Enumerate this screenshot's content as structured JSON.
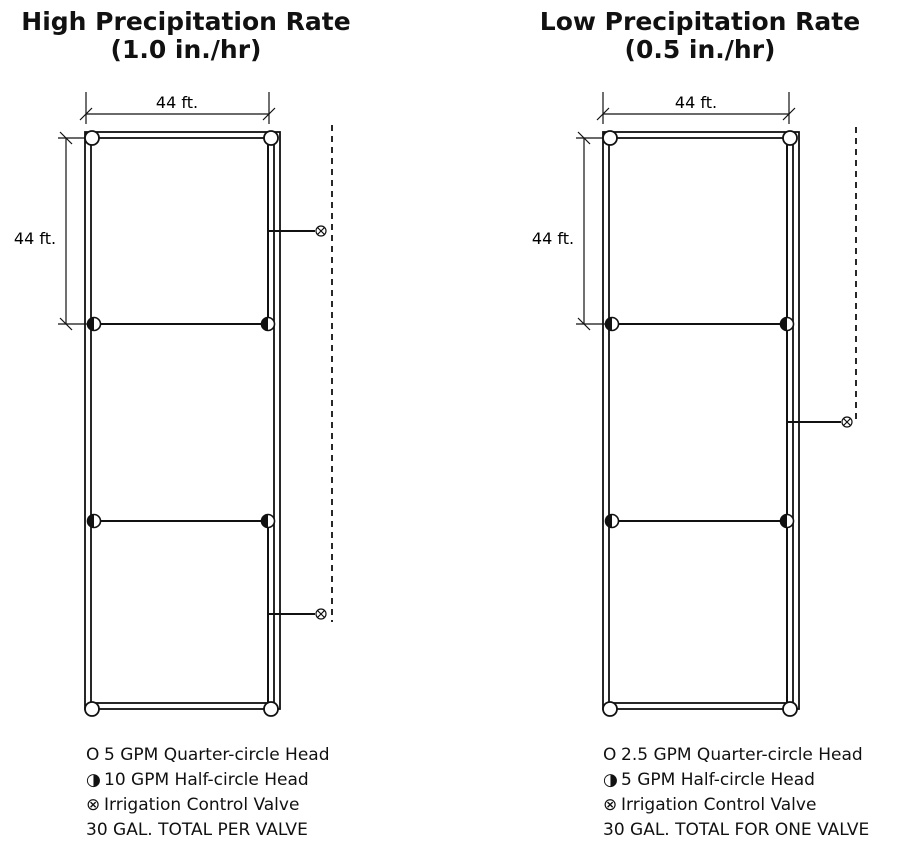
{
  "left": {
    "title_line1": "High Precipitation Rate",
    "title_line2": "(1.0 in./hr)",
    "width_label": "44 ft.",
    "height_label": "44 ft.",
    "legend": {
      "quarter_symbol": "O",
      "quarter": "5 GPM Quarter-circle Head",
      "half_symbol": "◑",
      "half": "10 GPM Half-circle Head",
      "valve_symbol": "⊗",
      "valve": "Irrigation Control Valve",
      "total": "30 GAL. TOTAL PER VALVE"
    }
  },
  "right": {
    "title_line1": "Low Precipitation Rate",
    "title_line2": "(0.5 in./hr)",
    "width_label": "44 ft.",
    "height_label": "44 ft.",
    "legend": {
      "quarter_symbol": "O",
      "quarter": "2.5 GPM Quarter-circle Head",
      "half_symbol": "◑",
      "half": "5 GPM Half-circle Head",
      "valve_symbol": "⊗",
      "valve": "Irrigation Control Valve",
      "total": "30 GAL. TOTAL FOR ONE VALVE"
    }
  }
}
